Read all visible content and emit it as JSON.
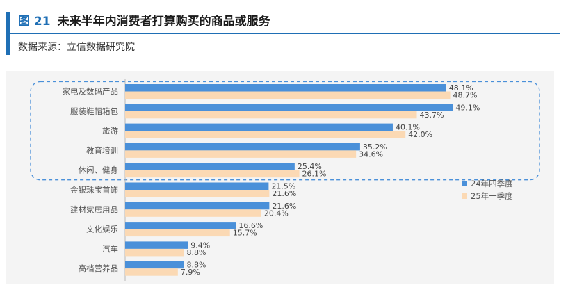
{
  "header": {
    "figure_number": "图 21",
    "title": "未来半年内消费者打算购买的商品或服务",
    "source": "数据来源：立信数据研究院"
  },
  "colors": {
    "accent": "#1f6fb5",
    "series_q4_24": "#4a90d9",
    "series_q1_25": "#fbd9b4",
    "highlight_box": "#4a90d9"
  },
  "chart_data": {
    "type": "bar",
    "orientation": "horizontal",
    "categories": [
      "家电及数码产品",
      "服装鞋帽箱包",
      "旅游",
      "教育培训",
      "休闲、健身",
      "金银珠宝首饰",
      "建材家居用品",
      "文化娱乐",
      "汽车",
      "高档营养品"
    ],
    "series": [
      {
        "name": "24年四季度",
        "values": [
          48.1,
          49.1,
          40.1,
          35.2,
          25.4,
          21.5,
          21.6,
          16.6,
          9.4,
          8.8
        ]
      },
      {
        "name": "25年一季度",
        "values": [
          48.7,
          43.7,
          42.0,
          34.6,
          26.1,
          21.6,
          20.4,
          15.7,
          8.8,
          7.9
        ]
      }
    ],
    "data_labels": [
      [
        "48.1%",
        "49.1%",
        "40.1%",
        "35.2%",
        "25.4%",
        "21.5%",
        "21.6%",
        "16.6%",
        "9.4%",
        "8.8%"
      ],
      [
        "48.7%",
        "43.7%",
        "42.0%",
        "34.6%",
        "26.1%",
        "21.6%",
        "20.4%",
        "15.7%",
        "8.8%",
        "7.9%"
      ]
    ],
    "xlim": [
      0,
      55
    ],
    "grid": false,
    "legend": "right",
    "highlighted_categories": 5
  }
}
